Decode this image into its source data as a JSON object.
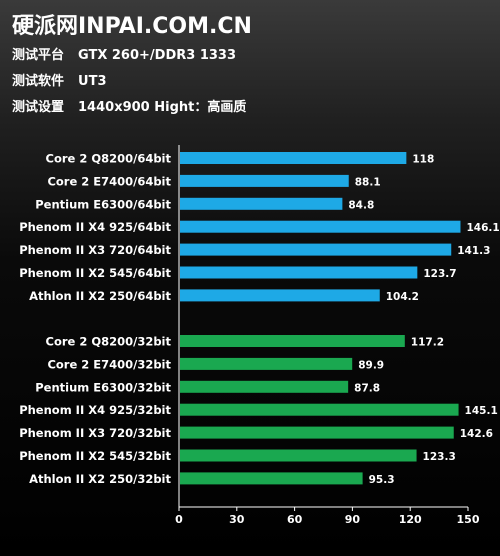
{
  "header": {
    "site": "硬派网INPAI.COM.CN",
    "lines": [
      {
        "label": "测试平台",
        "value": "GTX 260+/DDR3 1333"
      },
      {
        "label": "测试软件",
        "value": "UT3"
      },
      {
        "label": "测试设置",
        "value": "1440x900 Hight：高画质"
      }
    ]
  },
  "colors": {
    "series64": "#1ea9e6",
    "series32": "#1aa850",
    "axis": "#ffffff",
    "label_text": "#ffffff"
  },
  "chart_data": {
    "type": "bar",
    "orientation": "horizontal",
    "xlim": [
      0,
      150
    ],
    "x_ticks": [
      0,
      30,
      60,
      90,
      120,
      150
    ],
    "grid": false,
    "groups": [
      {
        "color_key": "series64",
        "categories": [
          "Core 2 Q8200/64bit",
          "Core 2 E7400/64bit",
          "Pentium E6300/64bit",
          "Phenom II X4 925/64bit",
          "Phenom II X3 720/64bit",
          "Phenom II X2 545/64bit",
          "Athlon II X2 250/64bit"
        ],
        "values": [
          118,
          88.1,
          84.8,
          146.1,
          141.3,
          123.7,
          104.2
        ]
      },
      {
        "color_key": "series32",
        "categories": [
          "Core 2 Q8200/32bit",
          "Core 2 E7400/32bit",
          "Pentium E6300/32bit",
          "Phenom II X4 925/32bit",
          "Phenom II X3 720/32bit",
          "Phenom II X2 545/32bit",
          "Athlon II X2 250/32bit"
        ],
        "values": [
          117.2,
          89.9,
          87.8,
          145.1,
          142.6,
          123.3,
          95.3
        ]
      }
    ]
  }
}
